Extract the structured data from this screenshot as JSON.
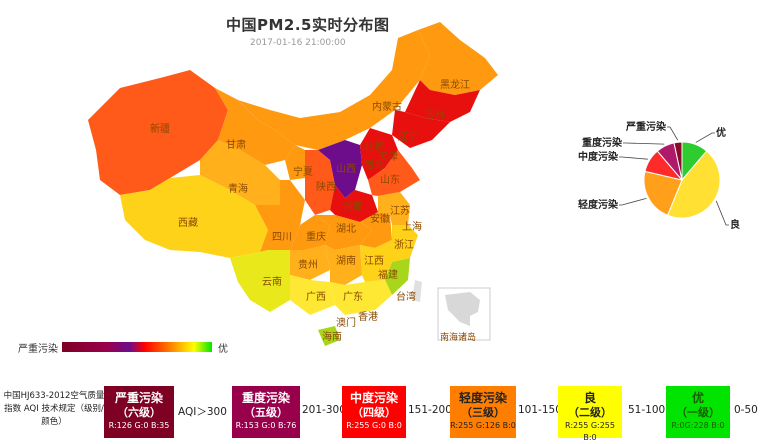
{
  "title": "中国PM2.5实时分布图",
  "subtitle": "2017-01-16 21:00:00",
  "provinces": {
    "heilongjiang": "黑龙江",
    "jilin": "吉林",
    "liaoning": "辽宁",
    "neimenggu": "内蒙古",
    "xinjiang": "新疆",
    "gansu": "甘肃",
    "qinghai": "青海",
    "xizang": "西藏",
    "ningxia": "宁夏",
    "shaanxi": "陕西",
    "shanxi": "山西",
    "hebei": "河北",
    "beijing": "北京",
    "tianjin": "天津",
    "shandong": "山东",
    "henan": "河南",
    "sichuan": "四川",
    "chongqing": "重庆",
    "hubei": "湖北",
    "anhui": "安徽",
    "jiangsu": "江苏",
    "shanghai": "上海",
    "zhejiang": "浙江",
    "guizhou": "贵州",
    "hunan": "湖南",
    "jiangxi": "江西",
    "fujian": "福建",
    "yunnan": "云南",
    "guangxi": "广西",
    "guangdong": "广东",
    "taiwan": "台湾",
    "hongkong": "香港",
    "macau": "澳门",
    "hainan": "海南",
    "nanhai": "南海诸岛"
  },
  "map_colors": {
    "severe": "#7e0023",
    "heavy": "#6d0d8c",
    "medium": "#ff0000",
    "light": "#ff7e00",
    "good": "#ffff00",
    "excellent": "#00e400"
  },
  "gradient_legend": {
    "low": "严重污染",
    "high": "优"
  },
  "pie": {
    "slices": [
      {
        "label": "优",
        "value": 10,
        "color": "#2ecc2e"
      },
      {
        "label": "良",
        "value": 40,
        "color": "#ffe033"
      },
      {
        "label": "轻度污染",
        "value": 20,
        "color": "#ff9f1a"
      },
      {
        "label": "中度污染",
        "value": 9,
        "color": "#ff2a2a"
      },
      {
        "label": "重度污染",
        "value": 7,
        "color": "#b0186a"
      },
      {
        "label": "严重污染",
        "value": 3,
        "color": "#8a0a2a"
      }
    ]
  },
  "scale": {
    "caption": "中国HJ633-2012空气质量指数 AQI 技术规定（级别/颜色）",
    "levels": [
      {
        "name": "严重污染",
        "grade": "（六级）",
        "rgb": "R:126 G:0 B:35",
        "bg": "#7e0023",
        "fg": "#ffffff"
      },
      {
        "name": "重度污染",
        "grade": "（五级）",
        "rgb": "R:153 G:0 B:76",
        "bg": "#99004c",
        "fg": "#ffffff"
      },
      {
        "name": "中度污染",
        "grade": "（四级）",
        "rgb": "R:255 G:0 B:0",
        "bg": "#ff0000",
        "fg": "#ffffff"
      },
      {
        "name": "轻度污染",
        "grade": "（三级）",
        "rgb": "R:255 G:126 B:0",
        "bg": "#ff7e00",
        "fg": "#222222"
      },
      {
        "name": "良",
        "grade": "（二级）",
        "rgb": "R:255 G:255 B:0",
        "bg": "#ffff00",
        "fg": "#222222"
      },
      {
        "name": "优",
        "grade": "（一级）",
        "rgb": "R:0G:228 B:0",
        "bg": "#00e400",
        "fg": "#1a5c00"
      }
    ],
    "ranges": [
      "AQI＞300",
      "201-300",
      "151-200",
      "101-150",
      "51-100",
      "0-50"
    ]
  }
}
